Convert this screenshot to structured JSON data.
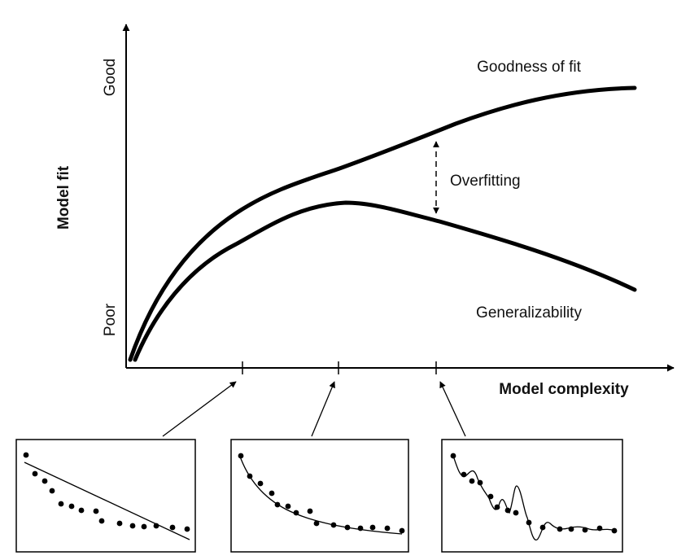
{
  "y_axis": {
    "title": "Model fit",
    "top_label": "Good",
    "bottom_label": "Poor"
  },
  "x_axis": {
    "title": "Model complexity"
  },
  "curves": [
    {
      "name": "Goodness of fit",
      "stroke": "#000000"
    },
    {
      "name": "Generalizability",
      "stroke": "#000000"
    }
  ],
  "annotation": {
    "label": "Overfitting"
  },
  "insets": [
    {
      "fit": "underfit-linear"
    },
    {
      "fit": "good-smooth"
    },
    {
      "fit": "overfit-wiggly"
    }
  ],
  "colors": {
    "ink": "#000000",
    "background": "#ffffff"
  }
}
